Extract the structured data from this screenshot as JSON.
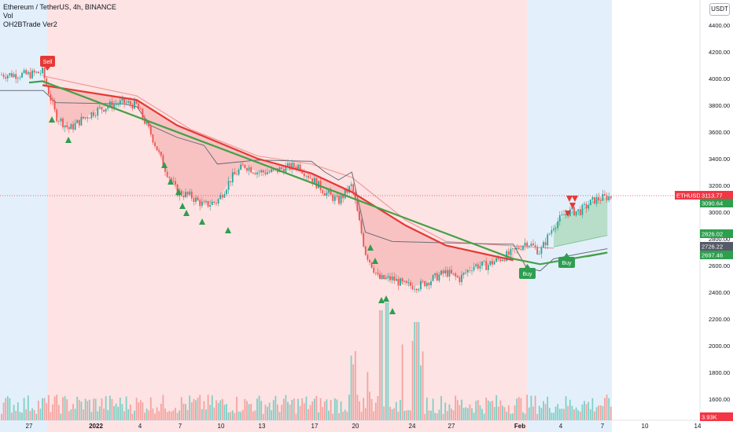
{
  "header": {
    "title": "Ethereum / TetherUS, 4h, BINANCE",
    "indicator_1": "Vol",
    "indicator_2": "OH2BTrade Ver2"
  },
  "price_axis": {
    "unit": "USDT",
    "ticks": [
      "4400.00",
      "4200.00",
      "4000.00",
      "3800.00",
      "3600.00",
      "3400.00",
      "3200.00",
      "3000.00",
      "2800.00",
      "2600.00",
      "2400.00",
      "2200.00",
      "2000.00",
      "1800.00",
      "1600.00"
    ]
  },
  "price_labels": {
    "symbol": "ETHUSDT",
    "last": "3113.77",
    "l2": "3090.64",
    "l3": "2826.02",
    "l4": "2726.22",
    "l5": "2697.46",
    "volume": "3.93K"
  },
  "signals": {
    "sell": "Sell",
    "buy": "Buy"
  },
  "colors": {
    "bearish_zone": "#fde3e3",
    "bullish_zone": "#e3f0fb",
    "up": "#26a69a",
    "down": "#ef5350",
    "ema_red": "#e53935",
    "ema_green": "#43a047",
    "grey_line": "#6b6f7a",
    "price_line": "#f23645"
  },
  "chart_data": {
    "type": "candlestick",
    "title": "Ethereum / TetherUS, 4h, BINANCE",
    "x_ticks": [
      "27",
      "2022",
      "4",
      "7",
      "10",
      "13",
      "17",
      "20",
      "24",
      "27",
      "Feb",
      "4",
      "7",
      "10",
      "14"
    ],
    "y_range": [
      1500,
      4560
    ],
    "grid": false,
    "close_path": [
      [
        "Dec 27",
        4030
      ],
      [
        "Dec 28",
        4050
      ],
      [
        "Dec 29",
        3720
      ],
      [
        "Dec 30",
        3620
      ],
      [
        "Dec 31",
        3700
      ],
      [
        "Jan 1",
        3760
      ],
      [
        "Jan 2",
        3800
      ],
      [
        "Jan 3",
        3820
      ],
      [
        "Jan 4",
        3800
      ],
      [
        "Jan 5",
        3600
      ],
      [
        "Jan 6",
        3350
      ],
      [
        "Jan 7",
        3150
      ],
      [
        "Jan 8",
        3120
      ],
      [
        "Jan 9",
        3050
      ],
      [
        "Jan 10",
        3080
      ],
      [
        "Jan 11",
        3250
      ],
      [
        "Jan 12",
        3350
      ],
      [
        "Jan 13",
        3300
      ],
      [
        "Jan 14",
        3300
      ],
      [
        "Jan 15",
        3330
      ],
      [
        "Jan 16",
        3350
      ],
      [
        "Jan 17",
        3250
      ],
      [
        "Jan 18",
        3150
      ],
      [
        "Jan 19",
        3080
      ],
      [
        "Jan 20",
        3200
      ],
      [
        "Jan 21",
        2700
      ],
      [
        "Jan 22",
        2500
      ],
      [
        "Jan 23",
        2500
      ],
      [
        "Jan 24",
        2450
      ],
      [
        "Jan 25",
        2450
      ],
      [
        "Jan 26",
        2500
      ],
      [
        "Jan 27",
        2550
      ],
      [
        "Jan 28",
        2500
      ],
      [
        "Jan 29",
        2600
      ],
      [
        "Jan 30",
        2600
      ],
      [
        "Jan 31",
        2650
      ],
      [
        "Feb 1",
        2700
      ],
      [
        "Feb 2",
        2780
      ],
      [
        "Feb 3",
        2700
      ],
      [
        "Feb 4",
        2900
      ],
      [
        "Feb 5",
        3000
      ],
      [
        "Feb 6",
        3010
      ],
      [
        "Feb 7",
        3090
      ],
      [
        "Feb 8",
        3114
      ]
    ],
    "ema_red": [
      [
        "Dec 28",
        3950
      ],
      [
        "Jan 4",
        3840
      ],
      [
        "Jan 7",
        3650
      ],
      [
        "Jan 13",
        3400
      ],
      [
        "Jan 17",
        3290
      ],
      [
        "Jan 20",
        3150
      ],
      [
        "Jan 24",
        2900
      ],
      [
        "Jan 27",
        2750
      ],
      [
        "Feb 1",
        2640
      ]
    ],
    "ema_green": [
      [
        "Dec 27",
        3970
      ],
      [
        "Dec 28",
        3980
      ],
      [
        "Feb 1",
        2650
      ],
      [
        "Feb 3",
        2610
      ],
      [
        "Feb 8",
        2697
      ]
    ],
    "series": [
      {
        "name": "Vol",
        "values": "volume histogram, peak ≈ 3.93K at current bar"
      }
    ]
  }
}
